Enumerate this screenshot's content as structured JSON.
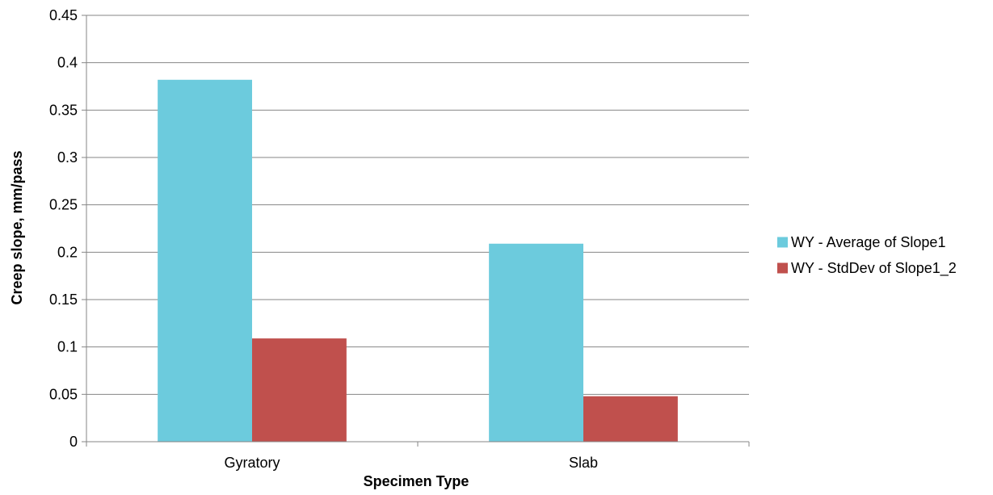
{
  "chart_data": {
    "type": "bar",
    "title": "",
    "xlabel": "Specimen Type",
    "ylabel": "Creep slope, mm/pass",
    "categories": [
      "Gyratory",
      "Slab"
    ],
    "series": [
      {
        "name": "WY - Average of Slope1",
        "color": "#6ccbdd",
        "values": [
          0.382,
          0.209
        ]
      },
      {
        "name": "WY - StdDev of Slope1_2",
        "color": "#c0504d",
        "values": [
          0.109,
          0.048
        ]
      }
    ],
    "ylim": [
      0,
      0.45
    ],
    "yticks": [
      "0",
      "0.05",
      "0.1",
      "0.15",
      "0.2",
      "0.25",
      "0.3",
      "0.35",
      "0.4",
      "0.45"
    ],
    "grid": true,
    "legend_position": "right"
  }
}
